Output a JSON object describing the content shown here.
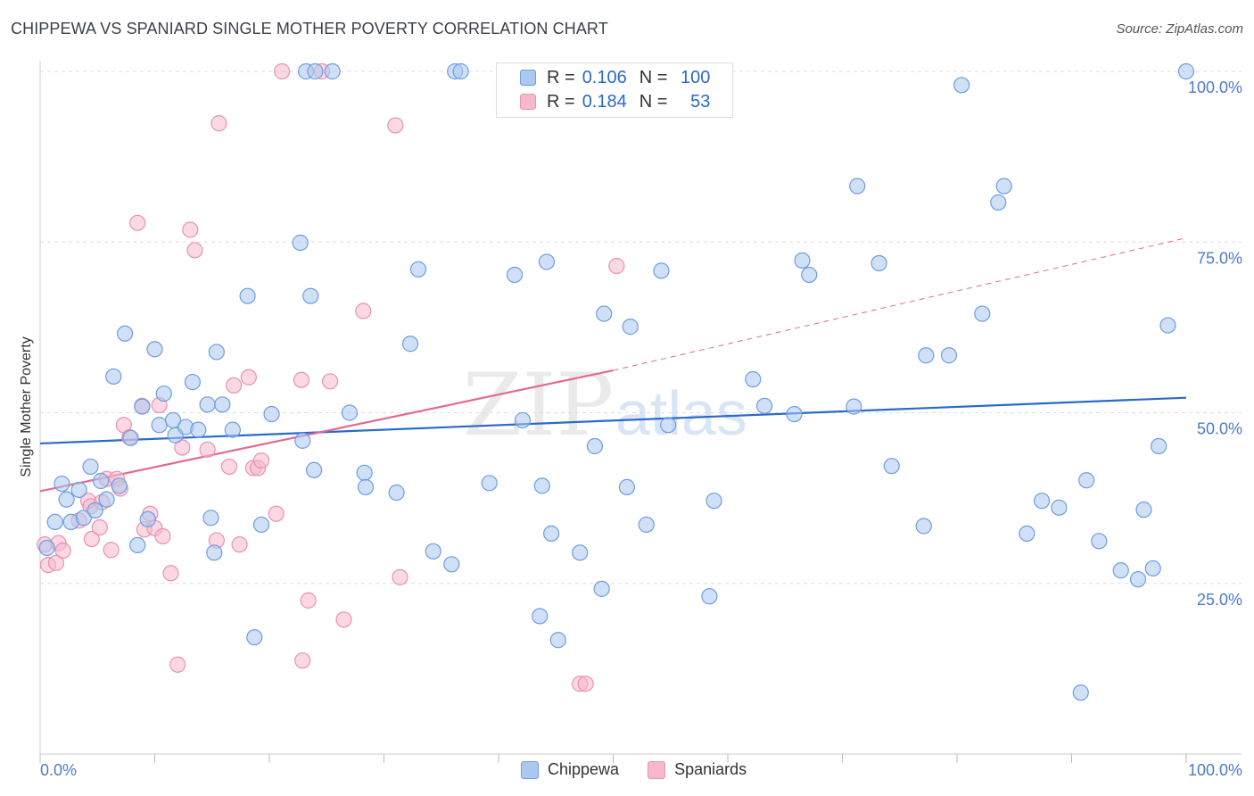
{
  "header": {
    "title": "CHIPPEWA VS SPANIARD SINGLE MOTHER POVERTY CORRELATION CHART",
    "source": "Source: ZipAtlas.com"
  },
  "watermark": "ZIPatlas",
  "legend": {
    "rows": [
      {
        "r_label": "R =",
        "r_value": "0.106",
        "n_label": "N =",
        "n_value": "100"
      },
      {
        "r_label": "R =",
        "r_value": "0.184",
        "n_label": "N =",
        "n_value": "53"
      }
    ]
  },
  "bottom_legend": [
    {
      "label": "Chippewa"
    },
    {
      "label": "Spaniards"
    }
  ],
  "colors": {
    "chippewa_fill": "#aac8f0",
    "chippewa_stroke": "#6d9de0",
    "chippewa_line": "#2a6ac8",
    "spaniards_fill": "#f7b8cc",
    "spaniards_stroke": "#e892b0",
    "spaniards_line": "#e06a94",
    "axis_text": "#4a7cc9",
    "grid": "#dddddd"
  },
  "chart_data": {
    "type": "scatter",
    "title": "CHIPPEWA VS SPANIARD SINGLE MOTHER POVERTY CORRELATION CHART",
    "xlabel": "",
    "ylabel": "Single Mother Poverty",
    "xlim": [
      0,
      100
    ],
    "ylim": [
      0,
      102
    ],
    "x_tick_labels": [
      "0.0%",
      "100.0%"
    ],
    "y_ticks": [
      25,
      50,
      75,
      100
    ],
    "y_tick_labels": [
      "25.0%",
      "50.0%",
      "75.0%",
      "100.0%"
    ],
    "grid": true,
    "legend_position": "top-center",
    "series": [
      {
        "name": "Chippewa",
        "r": 0.106,
        "n": 100,
        "trend": {
          "x": [
            0,
            100
          ],
          "y": [
            45.5,
            52.2
          ],
          "style": "solid"
        },
        "points": [
          [
            0.6,
            30.2
          ],
          [
            1.3,
            34
          ],
          [
            1.9,
            39.6
          ],
          [
            2.3,
            37.3
          ],
          [
            2.7,
            34
          ],
          [
            3.4,
            38.7
          ],
          [
            3.8,
            34.6
          ],
          [
            4.4,
            42.1
          ],
          [
            4.8,
            35.7
          ],
          [
            5.3,
            40
          ],
          [
            5.8,
            37.3
          ],
          [
            6.4,
            55.3
          ],
          [
            6.9,
            39.3
          ],
          [
            7.4,
            61.6
          ],
          [
            7.9,
            46.3
          ],
          [
            8.5,
            30.6
          ],
          [
            8.9,
            50.9
          ],
          [
            9.4,
            34.4
          ],
          [
            10,
            59.3
          ],
          [
            10.4,
            48.2
          ],
          [
            10.8,
            52.8
          ],
          [
            11.6,
            48.9
          ],
          [
            11.8,
            46.7
          ],
          [
            12.7,
            47.9
          ],
          [
            13.3,
            54.5
          ],
          [
            13.8,
            47.5
          ],
          [
            14.6,
            51.2
          ],
          [
            14.9,
            34.6
          ],
          [
            15.2,
            29.5
          ],
          [
            15.4,
            58.9
          ],
          [
            15.9,
            51.2
          ],
          [
            16.8,
            47.5
          ],
          [
            18.1,
            67.1
          ],
          [
            18.7,
            17.1
          ],
          [
            19.3,
            33.6
          ],
          [
            20.2,
            49.8
          ],
          [
            22.7,
            74.9
          ],
          [
            22.9,
            45.9
          ],
          [
            23.2,
            100
          ],
          [
            23.6,
            67.1
          ],
          [
            23.9,
            41.6
          ],
          [
            24,
            100
          ],
          [
            25.5,
            100
          ],
          [
            27,
            50
          ],
          [
            28.3,
            41.2
          ],
          [
            28.4,
            39.1
          ],
          [
            31.1,
            38.3
          ],
          [
            32.3,
            60.1
          ],
          [
            33,
            71
          ],
          [
            34.3,
            29.7
          ],
          [
            35.9,
            27.8
          ],
          [
            36.2,
            100
          ],
          [
            36.7,
            100
          ],
          [
            39.2,
            39.7
          ],
          [
            41.4,
            70.2
          ],
          [
            42.1,
            48.9
          ],
          [
            43.6,
            20.2
          ],
          [
            43.8,
            39.3
          ],
          [
            44.2,
            72.1
          ],
          [
            44.6,
            32.3
          ],
          [
            45.2,
            16.7
          ],
          [
            47.1,
            29.5
          ],
          [
            48.4,
            45.1
          ],
          [
            49,
            24.2
          ],
          [
            49.2,
            64.5
          ],
          [
            51.2,
            39.1
          ],
          [
            51.5,
            62.6
          ],
          [
            52.9,
            33.6
          ],
          [
            54.2,
            70.8
          ],
          [
            54.8,
            48.2
          ],
          [
            58.4,
            23.1
          ],
          [
            58.8,
            37.1
          ],
          [
            62.2,
            54.9
          ],
          [
            63.2,
            51
          ],
          [
            65.8,
            49.8
          ],
          [
            66.5,
            72.3
          ],
          [
            67.1,
            70.2
          ],
          [
            71,
            50.9
          ],
          [
            71.3,
            83.2
          ],
          [
            73.2,
            71.9
          ],
          [
            74.3,
            42.2
          ],
          [
            77.1,
            33.4
          ],
          [
            77.3,
            58.4
          ],
          [
            79.3,
            58.4
          ],
          [
            80.4,
            98
          ],
          [
            82.2,
            64.5
          ],
          [
            83.6,
            80.8
          ],
          [
            84.1,
            83.2
          ],
          [
            86.1,
            32.3
          ],
          [
            87.4,
            37.1
          ],
          [
            88.9,
            36.1
          ],
          [
            90.8,
            9
          ],
          [
            91.3,
            40.1
          ],
          [
            92.4,
            31.2
          ],
          [
            94.3,
            26.9
          ],
          [
            95.8,
            25.6
          ],
          [
            96.3,
            35.8
          ],
          [
            97.1,
            27.2
          ],
          [
            97.6,
            45.1
          ],
          [
            98.4,
            62.8
          ],
          [
            100,
            100
          ]
        ]
      },
      {
        "name": "Spaniards",
        "r": 0.184,
        "n": 53,
        "trend": {
          "x": [
            0,
            50
          ],
          "y": [
            38.5,
            56.2
          ],
          "style": "solid",
          "extend_to": [
            100,
            75.6
          ],
          "extend_style": "dashed"
        },
        "points": [
          [
            0.4,
            30.7
          ],
          [
            0.7,
            27.7
          ],
          [
            1.4,
            28
          ],
          [
            1.6,
            30.9
          ],
          [
            2,
            29.8
          ],
          [
            3.4,
            34.2
          ],
          [
            4.2,
            37.1
          ],
          [
            4.4,
            36.3
          ],
          [
            4.5,
            31.5
          ],
          [
            5.2,
            33.2
          ],
          [
            5.4,
            36.9
          ],
          [
            5.8,
            40.3
          ],
          [
            6.2,
            29.9
          ],
          [
            6.7,
            40.3
          ],
          [
            7,
            38.9
          ],
          [
            7.3,
            48.2
          ],
          [
            7.8,
            46.4
          ],
          [
            8.5,
            77.8
          ],
          [
            8.9,
            51
          ],
          [
            9.1,
            32.9
          ],
          [
            9.6,
            35.2
          ],
          [
            10,
            33.1
          ],
          [
            10.4,
            51.1
          ],
          [
            10.7,
            31.9
          ],
          [
            11.4,
            26.5
          ],
          [
            12,
            13.1
          ],
          [
            12.4,
            44.9
          ],
          [
            13.1,
            76.8
          ],
          [
            13.5,
            73.8
          ],
          [
            14.6,
            44.6
          ],
          [
            15.4,
            31.3
          ],
          [
            15.6,
            92.4
          ],
          [
            16.5,
            42.1
          ],
          [
            16.9,
            54
          ],
          [
            17.4,
            30.7
          ],
          [
            18.2,
            55.2
          ],
          [
            18.6,
            41.9
          ],
          [
            19,
            41.9
          ],
          [
            19.3,
            43
          ],
          [
            20.6,
            35.2
          ],
          [
            21.1,
            100
          ],
          [
            22.8,
            54.8
          ],
          [
            22.9,
            13.7
          ],
          [
            23.4,
            22.5
          ],
          [
            24.6,
            100
          ],
          [
            25.3,
            54.6
          ],
          [
            26.5,
            19.7
          ],
          [
            28.2,
            64.9
          ],
          [
            31,
            92.1
          ],
          [
            31.4,
            25.9
          ],
          [
            47.1,
            10.3
          ],
          [
            47.6,
            10.3
          ],
          [
            50.3,
            71.5
          ]
        ]
      }
    ]
  }
}
